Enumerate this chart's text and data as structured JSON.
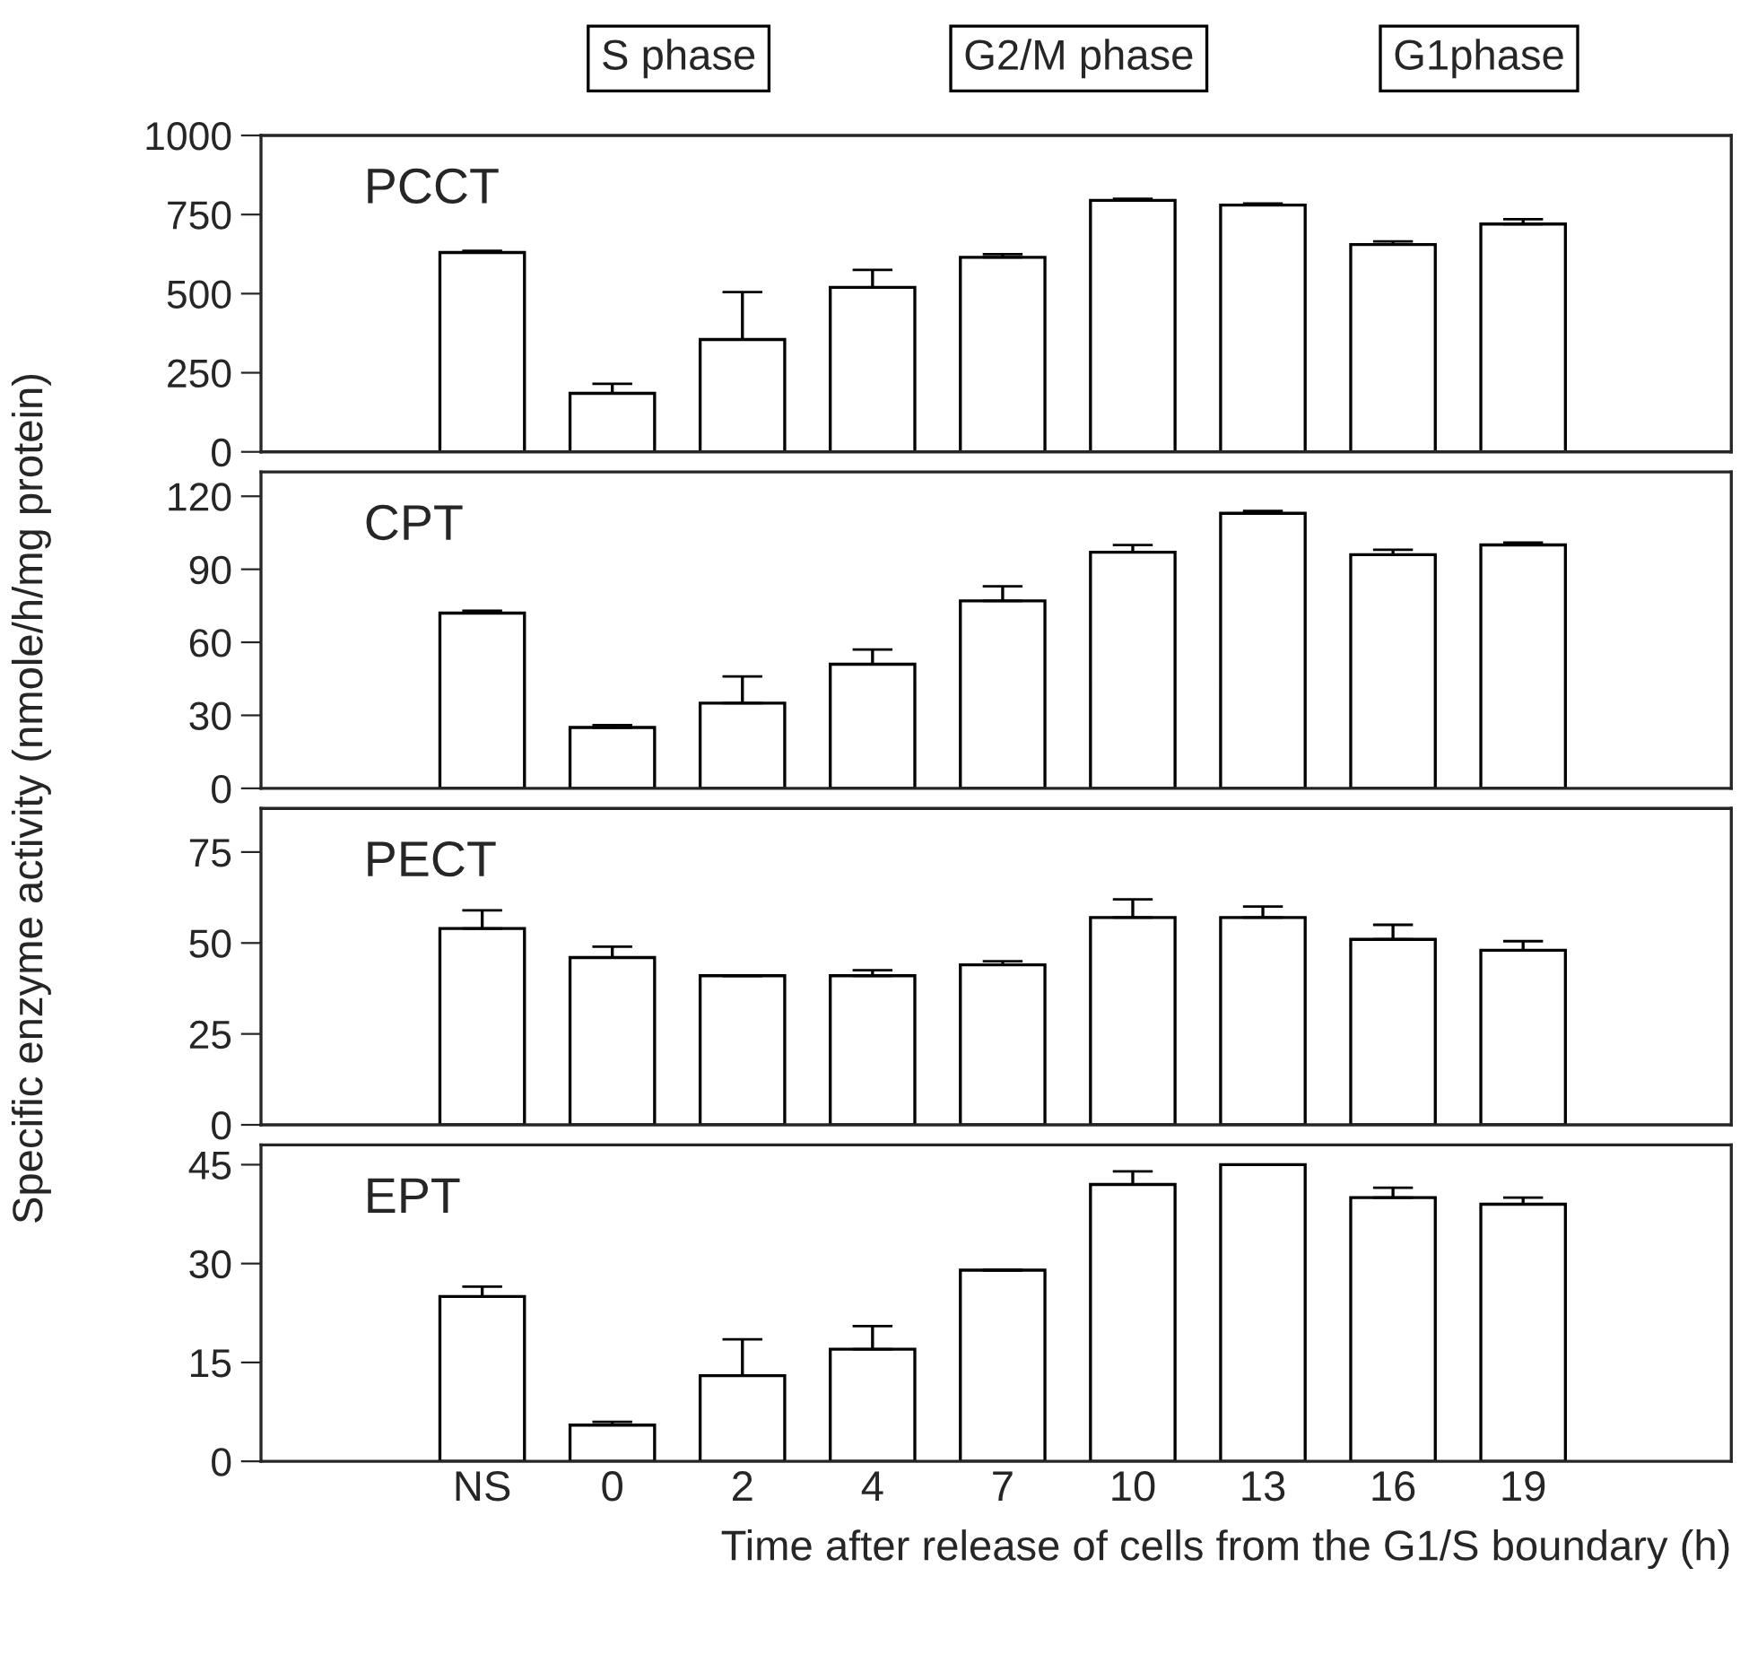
{
  "chart_data": [
    {
      "type": "bar",
      "title": "PCCT",
      "ylabel": "Specific enzyme activity (nmole/h/mg protein)",
      "annotations": [
        "S phase",
        "G2/M phase",
        "G1phase"
      ],
      "categories": [
        null,
        null,
        null,
        null,
        null,
        null,
        null,
        null,
        null
      ],
      "color": "#ffffff",
      "values": [
        630,
        185,
        355,
        520,
        615,
        795,
        780,
        655,
        720
      ],
      "errors": [
        [
          630,
          635
        ],
        [
          185,
          215
        ],
        [
          355,
          505
        ],
        [
          520,
          575
        ],
        [
          615,
          625
        ],
        [
          795,
          800
        ],
        [
          780,
          785
        ],
        [
          655,
          665
        ],
        [
          720,
          735
        ]
      ],
      "ylim": [
        0,
        1000
      ],
      "yticks": [
        0,
        250,
        500,
        750,
        1000
      ],
      "tick_labels": "y",
      "grid": false,
      "legend": false
    },
    {
      "type": "bar",
      "title": "CPT",
      "categories": [
        null,
        null,
        null,
        null,
        null,
        null,
        null,
        null,
        null
      ],
      "color": "#ffffff",
      "values": [
        72,
        25,
        35,
        51,
        77,
        97,
        113,
        96,
        100
      ],
      "errors": [
        [
          72,
          73
        ],
        [
          25,
          26
        ],
        [
          35,
          46
        ],
        [
          51,
          57
        ],
        [
          77,
          83
        ],
        [
          97,
          100
        ],
        [
          113,
          114
        ],
        [
          96,
          98
        ],
        [
          100,
          101
        ]
      ],
      "ylim": [
        0,
        130
      ],
      "yticks": [
        0,
        30,
        60,
        90,
        120
      ],
      "tick_labels": "y",
      "grid": false,
      "legend": false
    },
    {
      "type": "bar",
      "title": "PECT",
      "categories": [
        null,
        null,
        null,
        null,
        null,
        null,
        null,
        null,
        null
      ],
      "color": "#ffffff",
      "values": [
        54,
        46,
        41,
        41,
        44,
        57,
        57,
        51,
        48
      ],
      "errors": [
        [
          54,
          59
        ],
        [
          46,
          49
        ],
        [
          41,
          41
        ],
        [
          41,
          42.5
        ],
        [
          44,
          45
        ],
        [
          57,
          62
        ],
        [
          57,
          60
        ],
        [
          51,
          55
        ],
        [
          48,
          50.5
        ]
      ],
      "ylim": [
        0,
        87
      ],
      "yticks": [
        0,
        25,
        50,
        75
      ],
      "tick_labels": "y",
      "grid": false,
      "legend": false
    },
    {
      "type": "bar",
      "title": "EPT",
      "xlabel": "Time after release of cells from the G1/S boundary (h)",
      "categories": [
        "NS",
        "0",
        "2",
        "4",
        "7",
        "10",
        "13",
        "16",
        "19"
      ],
      "color": "#ffffff",
      "values": [
        25,
        5.5,
        13,
        17,
        29,
        42,
        45,
        40,
        39
      ],
      "errors": [
        [
          25,
          26.5
        ],
        [
          5.5,
          6
        ],
        [
          13,
          18.5
        ],
        [
          17,
          20.5
        ],
        [
          29,
          29
        ],
        [
          42,
          44
        ],
        [
          45,
          45
        ],
        [
          40,
          41.5
        ],
        [
          39,
          40
        ]
      ],
      "ylim": [
        0,
        48
      ],
      "yticks": [
        0,
        15,
        30,
        45
      ],
      "grid": false,
      "legend": false
    }
  ]
}
